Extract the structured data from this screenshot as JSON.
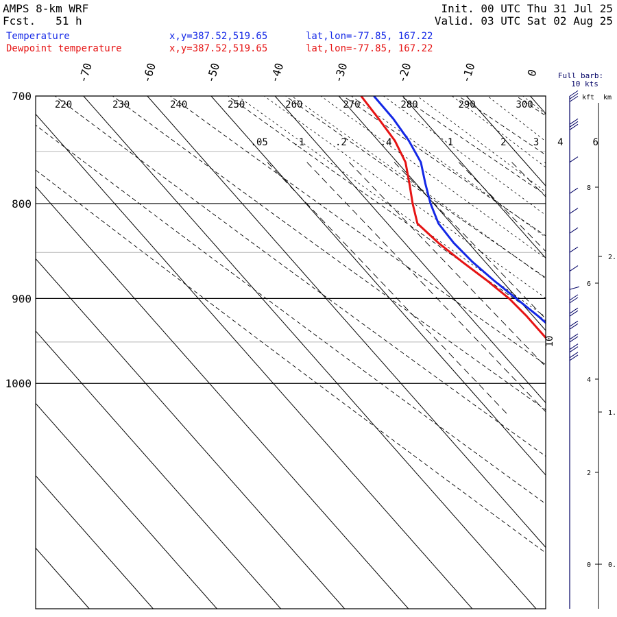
{
  "header": {
    "model": "AMPS 8-km WRF",
    "fcst": "Fcst.   51 h",
    "init": "Init. 00 UTC Thu 31 Jul 25",
    "valid": "Valid. 03 UTC Sat 02 Aug 25",
    "series": [
      {
        "label": "Temperature",
        "xy": "x,y=387.52,519.65",
        "latlon": "lat,lon=-77.85, 167.22",
        "color": "#1428e6"
      },
      {
        "label": "Dewpoint temperature",
        "xy": "x,y=387.52,519.65",
        "latlon": "lat,lon=-77.85, 167.22",
        "color": "#e61414"
      }
    ]
  },
  "barb_legend": {
    "line1": "Full barb:",
    "line2": "10 kts"
  },
  "height_axis": {
    "kft_label": "kft",
    "km_label": "km",
    "kft_ticks": [
      "8",
      "6",
      "4",
      "2",
      "0"
    ],
    "km_ticks": [
      "2.",
      "1.",
      "0."
    ]
  },
  "chart_data": {
    "type": "line",
    "title": "",
    "ylabel": "",
    "pressure_levels": [
      700,
      800,
      900,
      1000
    ],
    "ylim": [
      700,
      1045
    ],
    "temp_ticks": [
      -70,
      -60,
      -50,
      -40,
      -30,
      -20,
      -10,
      0
    ],
    "theta_labels": [
      220,
      230,
      240,
      250,
      260,
      270,
      280,
      290,
      300
    ],
    "mixing_ratio_labels": [
      ".05",
      ".1",
      ".2",
      ".4",
      "1",
      "2",
      "3",
      "4",
      "6"
    ],
    "isotherm_side_label": "10",
    "series": [
      {
        "name": "Temperature",
        "color": "#1428e6",
        "points": [
          [
            700,
            -24.5
          ],
          [
            720,
            -24.6
          ],
          [
            740,
            -25.2
          ],
          [
            760,
            -26.3
          ],
          [
            780,
            -28.5
          ],
          [
            800,
            -30.5
          ],
          [
            820,
            -32.0
          ],
          [
            840,
            -32.3
          ],
          [
            860,
            -32.0
          ],
          [
            880,
            -31.2
          ],
          [
            900,
            -30.2
          ],
          [
            920,
            -29.2
          ],
          [
            940,
            -28.5
          ],
          [
            960,
            -27.9
          ],
          [
            975,
            -27.4
          ]
        ]
      },
      {
        "name": "Dewpoint temperature",
        "color": "#e61414",
        "points": [
          [
            700,
            -26.5
          ],
          [
            720,
            -26.9
          ],
          [
            740,
            -27.4
          ],
          [
            760,
            -28.7
          ],
          [
            780,
            -31.0
          ],
          [
            800,
            -33.3
          ],
          [
            820,
            -35.3
          ],
          [
            840,
            -34.7
          ],
          [
            860,
            -33.6
          ],
          [
            880,
            -32.3
          ],
          [
            900,
            -31.3
          ],
          [
            920,
            -31.0
          ],
          [
            940,
            -31.0
          ],
          [
            960,
            -31.0
          ],
          [
            975,
            -31.0
          ]
        ]
      }
    ]
  }
}
